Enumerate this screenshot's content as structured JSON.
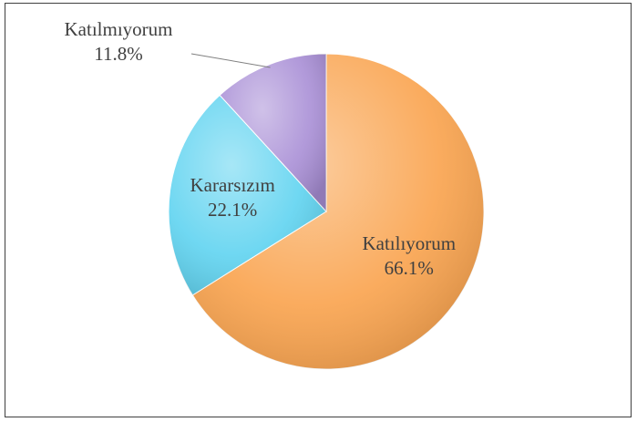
{
  "chart_data": {
    "type": "pie",
    "categories": [
      "Katılıyorum",
      "Kararsızım",
      "Katılmıyorum"
    ],
    "values": [
      66.1,
      22.1,
      11.8
    ],
    "value_labels": [
      "66.1%",
      "22.1%",
      "11.8%"
    ],
    "colors": [
      "#f9a24c",
      "#5fd3f0",
      "#a98fd6"
    ]
  }
}
